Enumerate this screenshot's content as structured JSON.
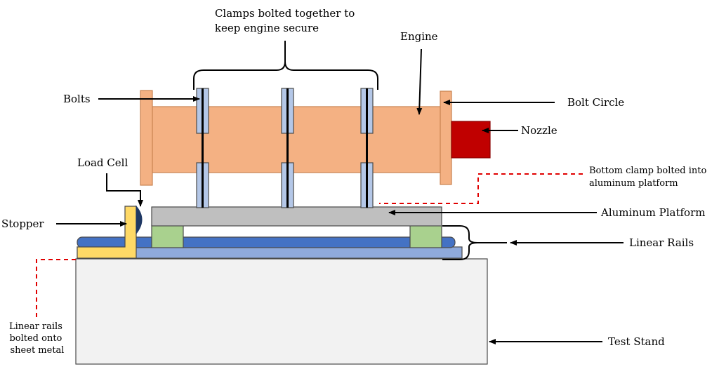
{
  "labels": {
    "clamps_line1": "Clamps bolted together to",
    "clamps_line2": "keep engine secure",
    "engine": "Engine",
    "bolts": "Bolts",
    "bolt_circle": "Bolt Circle",
    "nozzle": "Nozzle",
    "load_cell": "Load Cell",
    "bottom_clamp_line1": "Bottom clamp bolted into",
    "bottom_clamp_line2": "aluminum platform",
    "stopper": "Stopper",
    "aluminum_platform": "Aluminum Platform",
    "linear_rails": "Linear Rails",
    "rails_note_line1": "Linear rails",
    "rails_note_line2": "bolted onto",
    "rails_note_line3": "sheet metal",
    "test_stand": "Test Stand"
  },
  "colors": {
    "engine": "#f4b183",
    "engine_stroke": "#c9834f",
    "nozzle": "#c00000",
    "clamp": "#b4c7e7",
    "platform": "#bfbfbf",
    "rail_dark": "#4472c4",
    "rail_light": "#8faadc",
    "carriage": "#a9d18e",
    "stopper": "#ffd966",
    "load_cell": "#1f3864",
    "test_stand": "#f2f2f2",
    "dash": "#e00000"
  }
}
